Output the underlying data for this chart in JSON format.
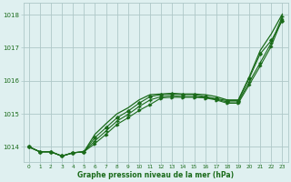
{
  "bg_color": "#dff0f0",
  "grid_color": "#aec8c8",
  "line_color": "#1a6b1a",
  "xlabel": "Graphe pression niveau de la mer (hPa)",
  "xlabel_color": "#1a6b1a",
  "ylabel_ticks": [
    1014,
    1015,
    1016,
    1017,
    1018
  ],
  "xlim": [
    -0.5,
    23.5
  ],
  "ylim": [
    1013.55,
    1018.35
  ],
  "x": [
    0,
    1,
    2,
    3,
    4,
    5,
    6,
    7,
    8,
    9,
    10,
    11,
    12,
    13,
    14,
    15,
    16,
    17,
    18,
    19,
    20,
    21,
    22,
    23
  ],
  "line1": [
    1014.0,
    1013.85,
    1013.85,
    1013.72,
    1013.82,
    1013.85,
    1014.1,
    1014.38,
    1014.68,
    1014.88,
    1015.1,
    1015.28,
    1015.48,
    1015.5,
    1015.5,
    1015.5,
    1015.48,
    1015.42,
    1015.32,
    1015.32,
    1015.88,
    1016.45,
    1017.05,
    1017.88
  ],
  "line2": [
    1014.0,
    1013.85,
    1013.85,
    1013.72,
    1013.82,
    1013.85,
    1014.18,
    1014.48,
    1014.78,
    1014.98,
    1015.22,
    1015.42,
    1015.52,
    1015.55,
    1015.52,
    1015.52,
    1015.5,
    1015.44,
    1015.36,
    1015.36,
    1015.96,
    1016.55,
    1017.15,
    1017.95
  ],
  "line3": [
    1014.0,
    1013.85,
    1013.85,
    1013.72,
    1013.82,
    1013.85,
    1014.28,
    1014.58,
    1014.88,
    1015.08,
    1015.32,
    1015.52,
    1015.58,
    1015.6,
    1015.58,
    1015.58,
    1015.52,
    1015.46,
    1015.4,
    1015.4,
    1016.08,
    1016.82,
    1017.22,
    1017.82
  ],
  "line4": [
    1014.0,
    1013.85,
    1013.85,
    1013.72,
    1013.82,
    1013.85,
    1014.38,
    1014.7,
    1015.0,
    1015.18,
    1015.42,
    1015.58,
    1015.6,
    1015.62,
    1015.6,
    1015.6,
    1015.58,
    1015.52,
    1015.42,
    1015.42,
    1016.12,
    1016.92,
    1017.42,
    1018.02
  ],
  "xtick_labels": [
    "0",
    "1",
    "2",
    "3",
    "4",
    "5",
    "6",
    "7",
    "8",
    "9",
    "10",
    "11",
    "12",
    "13",
    "14",
    "15",
    "16",
    "17",
    "18",
    "19",
    "20",
    "21",
    "22",
    "23"
  ]
}
